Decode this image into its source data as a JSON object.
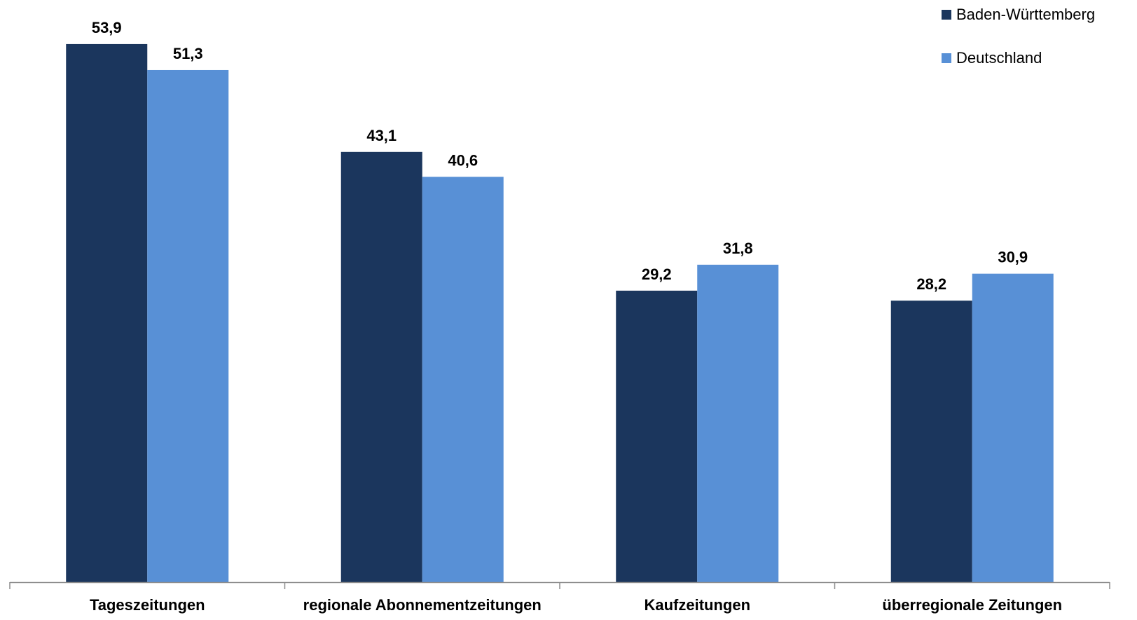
{
  "chart_data": {
    "type": "bar",
    "title": "",
    "xlabel": "",
    "ylabel": "",
    "ylim": [
      0,
      55
    ],
    "grid": false,
    "legend_position": "top-right",
    "categories": [
      "Tageszeitungen",
      "regionale Abonnementzeitungen",
      "Kaufzeitungen",
      "überregionale Zeitungen"
    ],
    "series": [
      {
        "name": "Baden-Württemberg",
        "color": "#1b365d",
        "values": [
          53.9,
          43.1,
          29.2,
          28.2
        ],
        "labels": [
          "53,9",
          "43,1",
          "29,2",
          "28,2"
        ]
      },
      {
        "name": "Deutschland",
        "color": "#5890d6",
        "values": [
          51.3,
          40.6,
          31.8,
          30.9
        ],
        "labels": [
          "51,3",
          "40,6",
          "31,8",
          "30,9"
        ]
      }
    ]
  }
}
